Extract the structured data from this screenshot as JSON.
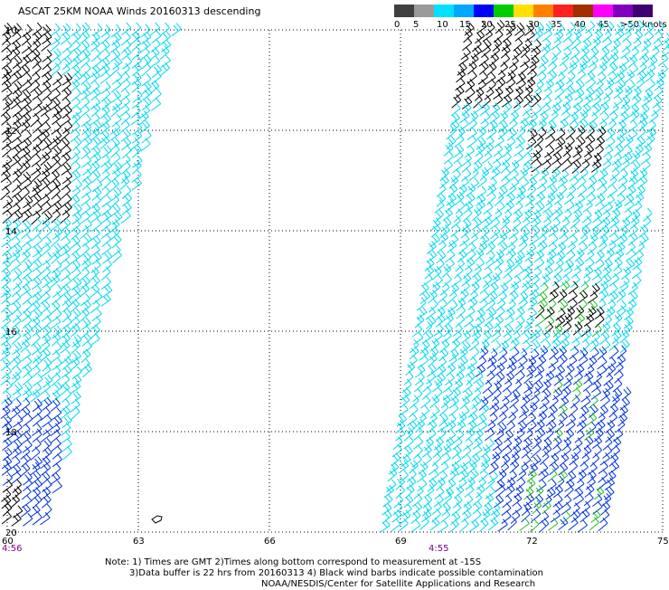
{
  "title": "ASCAT 25KM NOAA Winds 20160313 descending",
  "legend": {
    "labels": [
      "0",
      "5",
      "10",
      "15",
      "20",
      "25",
      "30",
      "35",
      "40",
      "45",
      ">50 knots"
    ],
    "colors": [
      "#404040",
      "#9a9a9a",
      "#00e0ff",
      "#00a8ff",
      "#0000ff",
      "#00cc00",
      "#ffe000",
      "#ff8000",
      "#ff2020",
      "#a03000",
      "#ff00ff",
      "#8000c0",
      "#400070"
    ]
  },
  "lat_labels": [
    "10",
    "12",
    "14",
    "16",
    "18",
    "20"
  ],
  "lon_labels": [
    "60",
    "63",
    "66",
    "69",
    "72",
    "75"
  ],
  "time_labels": [
    "4:56",
    "4:55"
  ],
  "notes": {
    "line1": "Note: 1) Times are GMT 2)Times along bottom correspond to measurement at -15S",
    "line2": "3)Data buffer is 22 hrs from 20160313 4) Black wind barbs indicate possible contamination",
    "line3": "NOAA/NESDIS/Center for Satellite Applications and Research"
  },
  "colors": {
    "cyan": "#00d8f0",
    "blue": "#0030e0",
    "black": "#000000",
    "green": "#20c020",
    "time": "#800080"
  }
}
